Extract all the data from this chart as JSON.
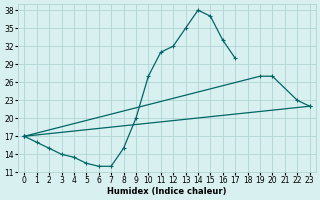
{
  "xlabel": "Humidex (Indice chaleur)",
  "bg_color": "#d9f0f0",
  "grid_color": "#b0d4d4",
  "line_color": "#006666",
  "xlim": [
    -0.5,
    23.5
  ],
  "ylim": [
    11,
    39
  ],
  "yticks": [
    11,
    14,
    17,
    20,
    23,
    26,
    29,
    32,
    35,
    38
  ],
  "xticks": [
    0,
    1,
    2,
    3,
    4,
    5,
    6,
    7,
    8,
    9,
    10,
    11,
    12,
    13,
    14,
    15,
    16,
    17,
    18,
    19,
    20,
    21,
    22,
    23
  ],
  "line1_x": [
    0,
    1,
    2,
    3,
    4,
    5,
    6,
    7,
    8,
    9,
    10,
    11,
    12,
    13,
    14,
    15,
    16,
    17
  ],
  "line1_y": [
    17,
    16,
    15,
    14,
    13.5,
    12.5,
    12.0,
    12.0,
    15.0,
    20,
    27,
    31,
    32,
    35,
    38,
    37,
    33,
    30
  ],
  "line2_x": [
    0,
    19,
    20,
    22,
    23
  ],
  "line2_y": [
    17,
    27,
    27,
    23,
    22
  ],
  "line3_x": [
    0,
    23
  ],
  "line3_y": [
    17,
    22
  ],
  "lw": 0.9,
  "msize": 3.0,
  "mew": 0.8,
  "xlabel_fontsize": 6.0,
  "tick_fontsize": 5.5
}
